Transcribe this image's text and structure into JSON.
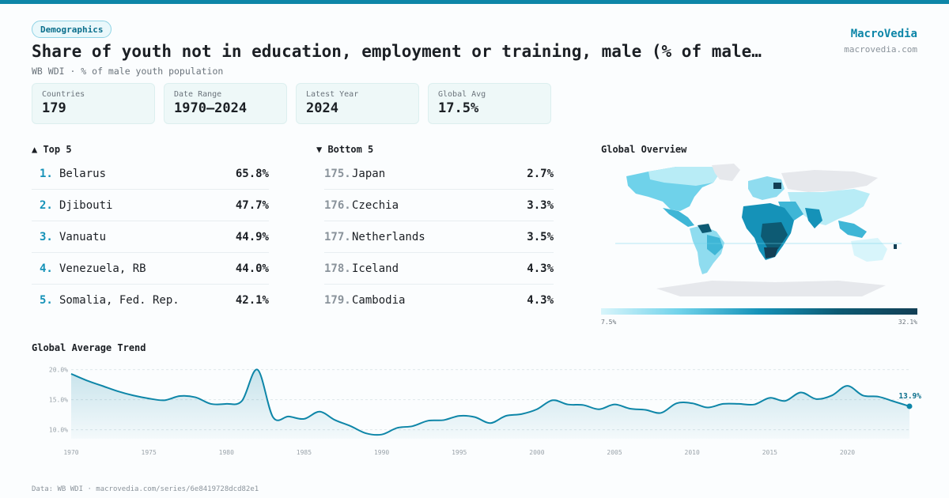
{
  "header": {
    "badge": "Demographics",
    "title": "Share of youth not in education, employment or training, male (% of male…",
    "subtitle": "WB WDI · % of male youth population",
    "brand_name": "MacroVedia",
    "brand_url": "macrovedia.com"
  },
  "stats": [
    {
      "label": "Countries",
      "value": "179"
    },
    {
      "label": "Date Range",
      "value": "1970–2024"
    },
    {
      "label": "Latest Year",
      "value": "2024"
    },
    {
      "label": "Global Avg",
      "value": "17.5%"
    }
  ],
  "top5": {
    "heading": "▲ Top 5",
    "items": [
      {
        "rank": "1.",
        "name": "Belarus",
        "value": "65.8%"
      },
      {
        "rank": "2.",
        "name": "Djibouti",
        "value": "47.7%"
      },
      {
        "rank": "3.",
        "name": "Vanuatu",
        "value": "44.9%"
      },
      {
        "rank": "4.",
        "name": "Venezuela, RB",
        "value": "44.0%"
      },
      {
        "rank": "5.",
        "name": "Somalia, Fed. Rep.",
        "value": "42.1%"
      }
    ]
  },
  "bottom5": {
    "heading": "▼ Bottom 5",
    "items": [
      {
        "rank": "175.",
        "name": "Japan",
        "value": "2.7%"
      },
      {
        "rank": "176.",
        "name": "Czechia",
        "value": "3.3%"
      },
      {
        "rank": "177.",
        "name": "Netherlands",
        "value": "3.5%"
      },
      {
        "rank": "178.",
        "name": "Iceland",
        "value": "4.3%"
      },
      {
        "rank": "179.",
        "name": "Cambodia",
        "value": "4.3%"
      }
    ]
  },
  "map": {
    "heading": "Global Overview",
    "legend_min": "7.5%",
    "legend_max": "32.1%",
    "colors": {
      "low": "#d8f5fb",
      "mid": "#1592b8",
      "high": "#123f55",
      "nodata": "#e6e8ec"
    }
  },
  "trend_heading": "Global Average Trend",
  "footer": "Data: WB WDI · macrovedia.com/series/6e8419728dcd82e1",
  "chart_data": {
    "type": "area",
    "title": "Global Average Trend",
    "x": [
      1970,
      1971,
      1972,
      1973,
      1974,
      1975,
      1976,
      1977,
      1978,
      1979,
      1980,
      1981,
      1982,
      1983,
      1984,
      1985,
      1986,
      1987,
      1988,
      1989,
      1990,
      1991,
      1992,
      1993,
      1994,
      1995,
      1996,
      1997,
      1998,
      1999,
      2000,
      2001,
      2002,
      2003,
      2004,
      2005,
      2006,
      2007,
      2008,
      2009,
      2010,
      2011,
      2012,
      2013,
      2014,
      2015,
      2016,
      2017,
      2018,
      2019,
      2020,
      2021,
      2022,
      2023,
      2024
    ],
    "series": [
      {
        "values": [
          19.3,
          18.2,
          17.3,
          16.4,
          15.7,
          15.2,
          14.9,
          15.6,
          15.4,
          14.3,
          14.3,
          14.8,
          20.0,
          12.1,
          12.2,
          11.8,
          13.0,
          11.6,
          10.6,
          9.4,
          9.2,
          10.3,
          10.6,
          11.5,
          11.6,
          12.3,
          12.1,
          11.1,
          12.3,
          12.6,
          13.4,
          14.9,
          14.2,
          14.1,
          13.4,
          14.2,
          13.5,
          13.3,
          12.8,
          14.4,
          14.4,
          13.7,
          14.3,
          14.3,
          14.2,
          15.3,
          14.8,
          16.2,
          15.1,
          15.7,
          17.3,
          15.7,
          15.5,
          14.7,
          13.9
        ]
      }
    ],
    "yticks": [
      "20.0%",
      "15.0%",
      "10.0%"
    ],
    "ytick_values": [
      20,
      15,
      10
    ],
    "xticks": [
      1970,
      1975,
      1980,
      1985,
      1990,
      1995,
      2000,
      2005,
      2010,
      2015,
      2020
    ],
    "ylim": [
      8.5,
      21
    ],
    "last_label": "13.9%",
    "color": "#0e86a8",
    "grid": true
  }
}
